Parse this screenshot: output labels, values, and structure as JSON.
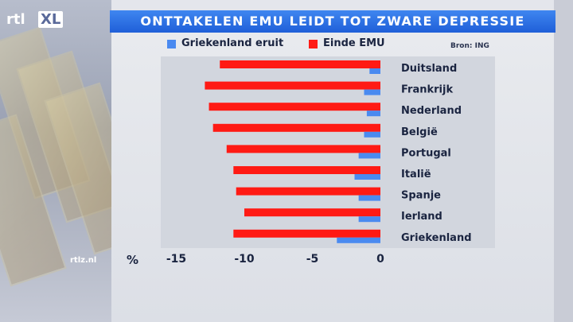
{
  "header": {
    "title": "ONTTAKELEN EMU LEIDT TOT ZWARE DEPRESSIE",
    "logo_text_1": "rtl",
    "logo_text_2": "XL",
    "source": "Bron: ING",
    "site": "rtlz.nl",
    "unit": "%"
  },
  "colors": {
    "title_bar": "#2a6fe6",
    "series_blue": "#4a8af0",
    "series_red": "#ff1a14"
  },
  "chart_data": {
    "type": "bar",
    "orientation": "horizontal",
    "categories": [
      "Duitsland",
      "Frankrijk",
      "Nederland",
      "België",
      "Portugal",
      "Italië",
      "Spanje",
      "Ierland",
      "Griekenland"
    ],
    "series": [
      {
        "name": "Griekenland eruit",
        "color": "#4a8af0",
        "values": [
          -0.8,
          -1.2,
          -1.0,
          -1.2,
          -1.6,
          -1.9,
          -1.6,
          -1.6,
          -3.2
        ]
      },
      {
        "name": "Einde EMU",
        "color": "#ff1a14",
        "values": [
          -11.8,
          -12.9,
          -12.6,
          -12.3,
          -11.3,
          -10.8,
          -10.6,
          -10.0,
          -10.8
        ]
      }
    ],
    "xlim": [
      -15,
      0
    ],
    "xticks": [
      "-15",
      "-10",
      "-5",
      "0"
    ],
    "xtick_values": [
      -15,
      -10,
      -5,
      0
    ],
    "legend_position": "top"
  }
}
